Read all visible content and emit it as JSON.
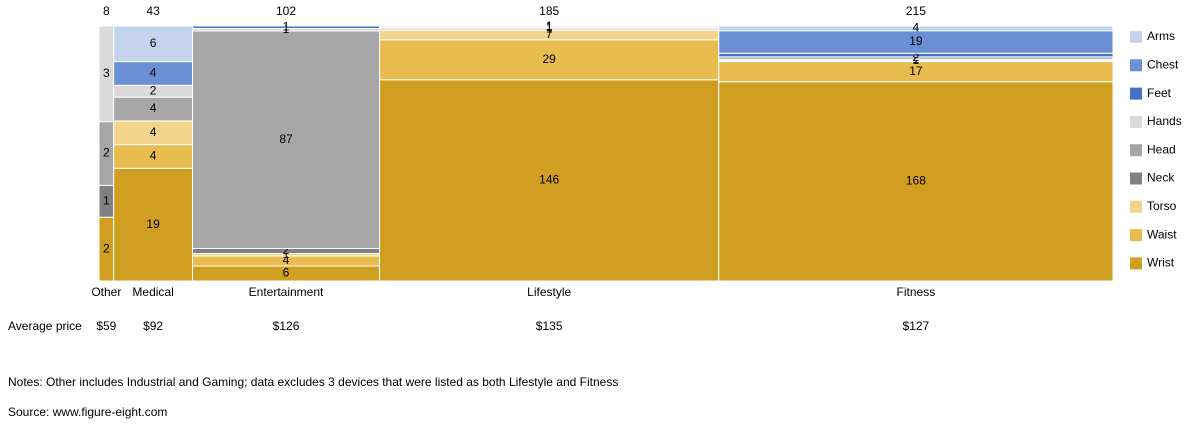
{
  "chart_data": {
    "type": "marimekko",
    "categories": [
      "Other",
      "Medical",
      "Entertainment",
      "Lifestyle",
      "Fitness"
    ],
    "totals": [
      8,
      43,
      102,
      185,
      215
    ],
    "series": [
      {
        "name": "Arms",
        "color": "#c5d4ee",
        "values": [
          0,
          6,
          0,
          0,
          4
        ]
      },
      {
        "name": "Chest",
        "color": "#6a8fd4",
        "values": [
          0,
          4,
          0,
          0,
          19
        ]
      },
      {
        "name": "Feet",
        "color": "#4472c4",
        "values": [
          0,
          0,
          1,
          0,
          3
        ]
      },
      {
        "name": "Hands",
        "color": "#d9d9d9",
        "values": [
          3,
          2,
          1,
          1,
          0
        ]
      },
      {
        "name": "Head",
        "color": "#a6a6a6",
        "values": [
          2,
          4,
          87,
          1,
          2
        ]
      },
      {
        "name": "Neck",
        "color": "#808080",
        "values": [
          1,
          0,
          2,
          1,
          1
        ]
      },
      {
        "name": "Torso",
        "color": "#f2d48d",
        "values": [
          0,
          4,
          1,
          7,
          1
        ]
      },
      {
        "name": "Waist",
        "color": "#e8bc4e",
        "values": [
          0,
          4,
          4,
          29,
          17
        ]
      },
      {
        "name": "Wrist",
        "color": "#d09e20",
        "values": [
          2,
          19,
          6,
          146,
          168
        ]
      }
    ],
    "price_row_label": "Average price",
    "price_labels": [
      "$59",
      "$92",
      "$126",
      "$135",
      "$127"
    ],
    "notes": "Notes: Other includes Industrial and Gaming; data excludes 3 devices that were listed as both Lifestyle and Fitness",
    "source": "Source: www.figure-eight.com"
  }
}
